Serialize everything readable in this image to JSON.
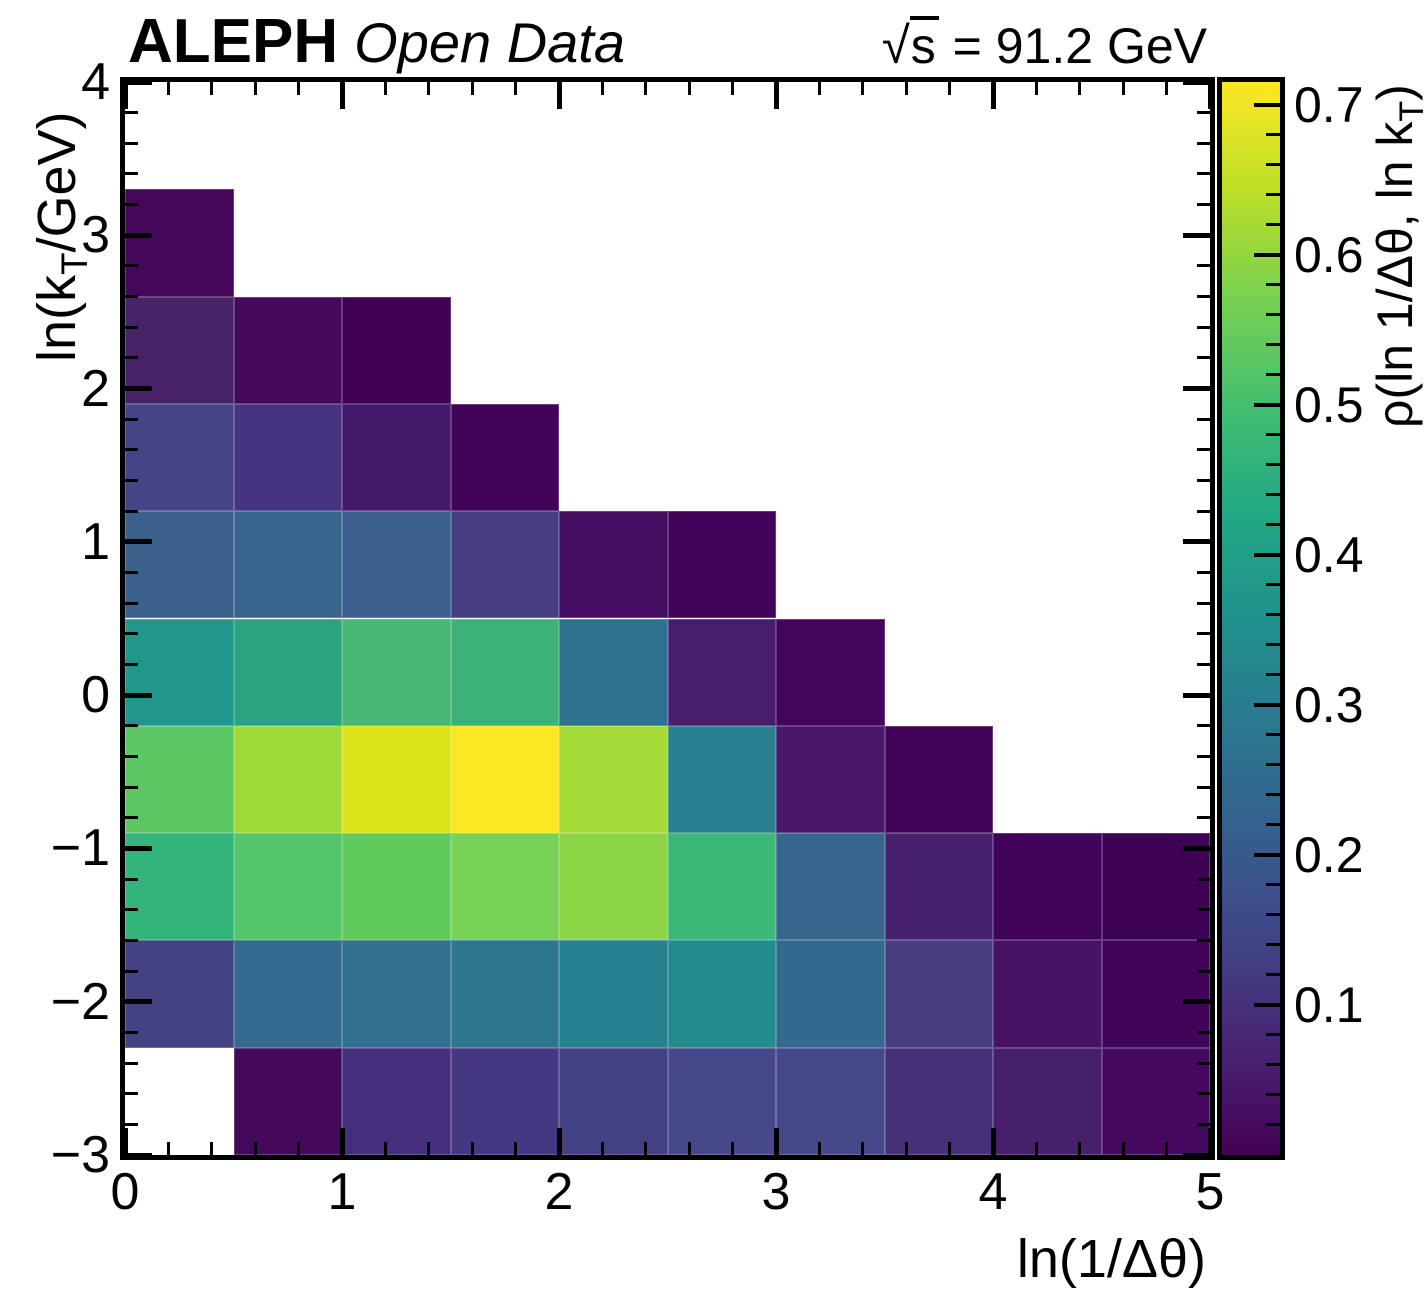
{
  "header": {
    "experiment": "ALEPH",
    "dataset": "Open Data",
    "energy": {
      "radical": "√",
      "radicand": "s",
      "rest": " = 91.2 GeV"
    }
  },
  "chart_data": {
    "type": "heatmap",
    "x": {
      "label": "ln(1/Δθ)",
      "min": 0,
      "max": 5,
      "bin_width": 0.5,
      "major_ticks": [
        0,
        1,
        2,
        3,
        4,
        5
      ],
      "tick_labels": [
        "0",
        "1",
        "2",
        "3",
        "4",
        "5"
      ],
      "minor_tick_step": 0.2
    },
    "y": {
      "label_pre": "ln(k",
      "label_sub": "T",
      "label_post": "/GeV)",
      "min": -3,
      "max": 4,
      "bin_width": 0.7,
      "major_ticks": [
        -3,
        -2,
        -1,
        0,
        1,
        2,
        3,
        4
      ],
      "tick_labels": [
        "−3",
        "−2",
        "−1",
        "0",
        "1",
        "2",
        "3",
        "4"
      ],
      "minor_tick_step": 0.2
    },
    "z": {
      "label_pre": "ρ(ln 1/Δθ, ln k",
      "label_sub": "T",
      "label_post": ")",
      "min": 0,
      "max": 0.715,
      "major_ticks": [
        0.1,
        0.2,
        0.3,
        0.4,
        0.5,
        0.6,
        0.7
      ],
      "tick_labels": [
        "0.1",
        "0.2",
        "0.3",
        "0.4",
        "0.5",
        "0.6",
        "0.7"
      ],
      "minor_tick_step": 0.02
    },
    "x_bin_edges": [
      0,
      0.5,
      1.0,
      1.5,
      2.0,
      2.5,
      3.0,
      3.5,
      4.0,
      4.5,
      5.0
    ],
    "rows": [
      {
        "y_range": [
          2.6,
          3.3
        ],
        "values": [
          0.03,
          null,
          null,
          null,
          null,
          null,
          null,
          null,
          null,
          null
        ],
        "colors": [
          "#45075A",
          null,
          null,
          null,
          null,
          null,
          null,
          null,
          null,
          null
        ]
      },
      {
        "y_range": [
          1.9,
          2.6
        ],
        "values": [
          0.06,
          0.03,
          0.01,
          null,
          null,
          null,
          null,
          null,
          null,
          null
        ],
        "colors": [
          "#462369",
          "#45095B",
          "#410254",
          null,
          null,
          null,
          null,
          null,
          null,
          null
        ]
      },
      {
        "y_range": [
          1.2,
          1.9
        ],
        "values": [
          0.14,
          0.11,
          0.05,
          0.02,
          null,
          null,
          null,
          null,
          null,
          null
        ],
        "colors": [
          "#454486",
          "#453580",
          "#44186B",
          "#420459",
          null,
          null,
          null,
          null,
          null,
          null
        ]
      },
      {
        "y_range": [
          0.5,
          1.2
        ],
        "values": [
          0.22,
          0.22,
          0.21,
          0.13,
          0.04,
          0.01,
          null,
          null,
          null,
          null
        ],
        "colors": [
          "#3A618C",
          "#36648D",
          "#3B5F8C",
          "#473D83",
          "#450E60",
          "#400357",
          null,
          null,
          null,
          null
        ]
      },
      {
        "y_range": [
          -0.2,
          0.5
        ],
        "values": [
          0.37,
          0.42,
          0.47,
          0.46,
          0.26,
          0.06,
          0.02,
          null,
          null,
          null
        ],
        "colors": [
          "#21968C",
          "#2AA47F",
          "#48B573",
          "#3CB279",
          "#2E7290",
          "#471D6E",
          "#43045B",
          null,
          null,
          null
        ]
      },
      {
        "y_range": [
          -0.9,
          -0.2
        ],
        "values": [
          0.52,
          0.6,
          0.66,
          0.71,
          0.61,
          0.3,
          0.07,
          0.02,
          null,
          null
        ],
        "colors": [
          "#5DC863",
          "#A0DA39",
          "#DCE319",
          "#FBE723",
          "#A4DB36",
          "#2A808E",
          "#48196B",
          "#420458",
          null,
          null
        ]
      },
      {
        "y_range": [
          -1.6,
          -0.9
        ],
        "values": [
          0.46,
          0.51,
          0.53,
          0.57,
          0.59,
          0.47,
          0.23,
          0.07,
          0.01,
          0.01
        ],
        "colors": [
          "#32B47B",
          "#54C568",
          "#61CA5D",
          "#77D153",
          "#8BD546",
          "#3BB878",
          "#35678E",
          "#46206C",
          "#3F0357",
          "#3E0255"
        ]
      },
      {
        "y_range": [
          -2.3,
          -1.6
        ],
        "values": [
          0.14,
          0.24,
          0.26,
          0.27,
          0.31,
          0.34,
          0.24,
          0.13,
          0.05,
          0.01
        ],
        "colors": [
          "#454284",
          "#336A8E",
          "#31708E",
          "#2E768E",
          "#26828E",
          "#238A8D",
          "#316A8E",
          "#4A3D7F",
          "#471164",
          "#400459"
        ]
      },
      {
        "y_range": [
          -3.0,
          -2.3
        ],
        "values": [
          null,
          0.03,
          0.1,
          0.12,
          0.14,
          0.15,
          0.15,
          0.1,
          0.07,
          0.03
        ],
        "colors": [
          null,
          "#45095B",
          "#452F7D",
          "#453781",
          "#444084",
          "#464889",
          "#464889",
          "#463179",
          "#46206B",
          "#44085E"
        ]
      }
    ],
    "colormap": {
      "name": "viridis",
      "stops": [
        "#440154",
        "#482475",
        "#414487",
        "#355F8D",
        "#2A788E",
        "#21918C",
        "#22A884",
        "#44BF70",
        "#7AD151",
        "#BDDF26",
        "#FDE725"
      ]
    },
    "legend_position": "right",
    "grid": false
  }
}
